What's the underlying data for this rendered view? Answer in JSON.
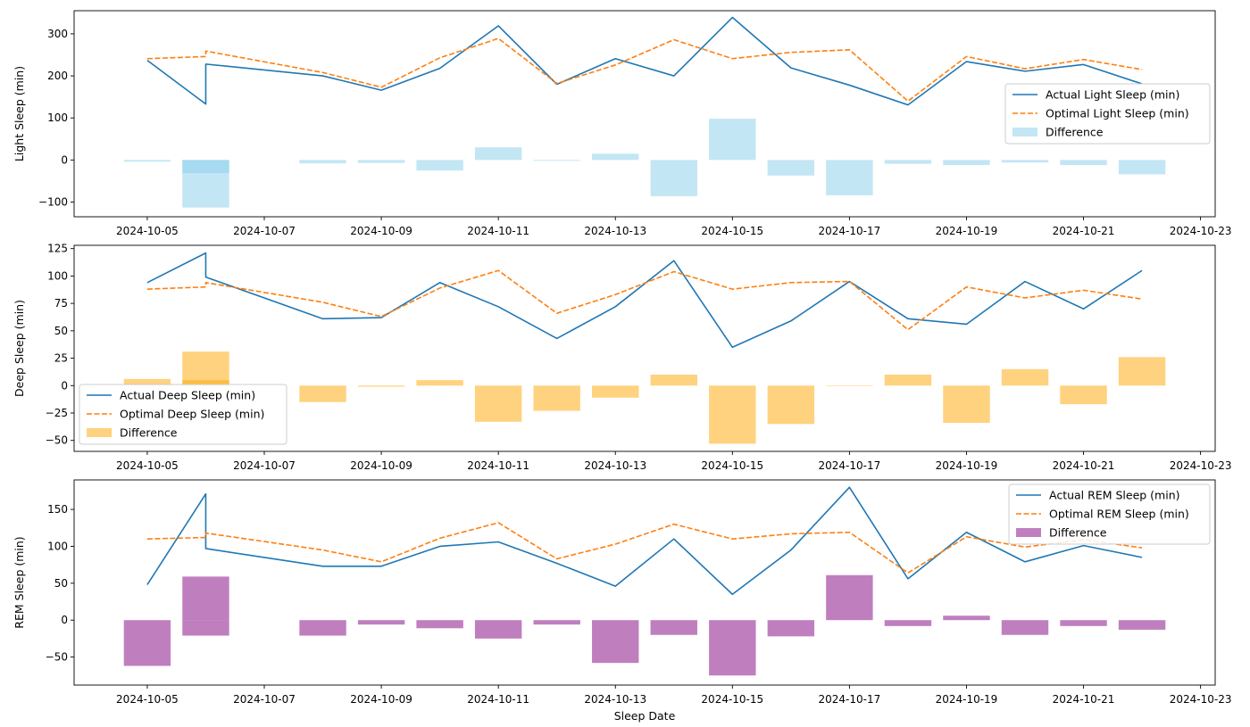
{
  "chart_data": [
    {
      "type": "line",
      "ylabel": "Light Sleep (min)",
      "xlabel": "",
      "ylim": [
        -135,
        355
      ],
      "yticks": [
        -100,
        0,
        100,
        200,
        300
      ],
      "xlim": [
        "2024-10-03T18:00",
        "2024-10-23T06:00"
      ],
      "xticks": [
        "2024-10-05",
        "2024-10-07",
        "2024-10-09",
        "2024-10-11",
        "2024-10-13",
        "2024-10-15",
        "2024-10-17",
        "2024-10-19",
        "2024-10-21",
        "2024-10-23"
      ],
      "series": [
        {
          "name": "Actual Light Sleep (min)",
          "kind": "line",
          "style": "solid",
          "color": "#1f77b4",
          "x": [
            "2024-10-05",
            "2024-10-06",
            "2024-10-06",
            "2024-10-08",
            "2024-10-09",
            "2024-10-10",
            "2024-10-11",
            "2024-10-12",
            "2024-10-13",
            "2024-10-14",
            "2024-10-15",
            "2024-10-16",
            "2024-10-17",
            "2024-10-18",
            "2024-10-19",
            "2024-10-20",
            "2024-10-21",
            "2024-10-22"
          ],
          "y": [
            237,
            133,
            228,
            200,
            166,
            218,
            319,
            180,
            241,
            200,
            339,
            219,
            178,
            131,
            234,
            211,
            227,
            181
          ]
        },
        {
          "name": "Optimal Light Sleep (min)",
          "kind": "line",
          "style": "dashed",
          "color": "#ff7f0e",
          "x": [
            "2024-10-05",
            "2024-10-06",
            "2024-10-06",
            "2024-10-08",
            "2024-10-09",
            "2024-10-10",
            "2024-10-11",
            "2024-10-12",
            "2024-10-13",
            "2024-10-14",
            "2024-10-15",
            "2024-10-16",
            "2024-10-17",
            "2024-10-18",
            "2024-10-19",
            "2024-10-20",
            "2024-10-21",
            "2024-10-22"
          ],
          "y": [
            241,
            246,
            259,
            208,
            173,
            243,
            289,
            182,
            226,
            286,
            241,
            256,
            262,
            140,
            246,
            217,
            239,
            215
          ]
        },
        {
          "name": "Difference",
          "kind": "bar",
          "color": "#87ceeb",
          "opacity": 0.5,
          "x": [
            "2024-10-05",
            "2024-10-06",
            "2024-10-06",
            "2024-10-08",
            "2024-10-09",
            "2024-10-10",
            "2024-10-11",
            "2024-10-12",
            "2024-10-13",
            "2024-10-14",
            "2024-10-15",
            "2024-10-16",
            "2024-10-17",
            "2024-10-18",
            "2024-10-19",
            "2024-10-20",
            "2024-10-21",
            "2024-10-22"
          ],
          "y": [
            -4,
            -113,
            -31,
            -8,
            -7,
            -25,
            30,
            -2,
            15,
            -86,
            98,
            -37,
            -84,
            -9,
            -12,
            -6,
            -12,
            -34
          ]
        }
      ],
      "legend": "right"
    },
    {
      "type": "line",
      "ylabel": "Deep Sleep (min)",
      "xlabel": "",
      "ylim": [
        -60,
        128
      ],
      "yticks": [
        -50,
        -25,
        0,
        25,
        50,
        75,
        100,
        125
      ],
      "xlim": [
        "2024-10-03T18:00",
        "2024-10-23T06:00"
      ],
      "xticks": [
        "2024-10-05",
        "2024-10-07",
        "2024-10-09",
        "2024-10-11",
        "2024-10-13",
        "2024-10-15",
        "2024-10-17",
        "2024-10-19",
        "2024-10-21",
        "2024-10-23"
      ],
      "series": [
        {
          "name": "Actual Deep Sleep (min)",
          "kind": "line",
          "style": "solid",
          "color": "#1f77b4",
          "x": [
            "2024-10-05",
            "2024-10-06",
            "2024-10-06",
            "2024-10-08",
            "2024-10-09",
            "2024-10-10",
            "2024-10-11",
            "2024-10-12",
            "2024-10-13",
            "2024-10-14",
            "2024-10-15",
            "2024-10-16",
            "2024-10-17",
            "2024-10-18",
            "2024-10-19",
            "2024-10-20",
            "2024-10-21",
            "2024-10-22"
          ],
          "y": [
            94,
            121,
            99,
            61,
            62,
            94,
            72,
            43,
            72,
            114,
            35,
            59,
            95,
            61,
            56,
            95,
            70,
            105
          ]
        },
        {
          "name": "Optimal Deep Sleep (min)",
          "kind": "line",
          "style": "dashed",
          "color": "#ff7f0e",
          "x": [
            "2024-10-05",
            "2024-10-06",
            "2024-10-06",
            "2024-10-08",
            "2024-10-09",
            "2024-10-10",
            "2024-10-11",
            "2024-10-12",
            "2024-10-13",
            "2024-10-14",
            "2024-10-15",
            "2024-10-16",
            "2024-10-17",
            "2024-10-18",
            "2024-10-19",
            "2024-10-20",
            "2024-10-21",
            "2024-10-22"
          ],
          "y": [
            88,
            90,
            94,
            76,
            63,
            89,
            105,
            66,
            83,
            104,
            88,
            94,
            95,
            51,
            90,
            80,
            87,
            79
          ]
        },
        {
          "name": "Difference",
          "kind": "bar",
          "color": "#ffa500",
          "opacity": 0.5,
          "x": [
            "2024-10-05",
            "2024-10-06",
            "2024-10-06",
            "2024-10-08",
            "2024-10-09",
            "2024-10-10",
            "2024-10-11",
            "2024-10-12",
            "2024-10-13",
            "2024-10-14",
            "2024-10-15",
            "2024-10-16",
            "2024-10-17",
            "2024-10-18",
            "2024-10-19",
            "2024-10-20",
            "2024-10-21",
            "2024-10-22"
          ],
          "y": [
            6,
            31,
            5,
            -15,
            -1,
            5,
            -33,
            -23,
            -11,
            10,
            -53,
            -35,
            0,
            10,
            -34,
            15,
            -17,
            26
          ]
        }
      ],
      "legend": "lower left"
    },
    {
      "type": "line",
      "ylabel": "REM Sleep (min)",
      "xlabel": "Sleep Date",
      "ylim": [
        -88,
        190
      ],
      "yticks": [
        -50,
        0,
        50,
        100,
        150
      ],
      "xlim": [
        "2024-10-03T18:00",
        "2024-10-23T06:00"
      ],
      "xticks": [
        "2024-10-05",
        "2024-10-07",
        "2024-10-09",
        "2024-10-11",
        "2024-10-13",
        "2024-10-15",
        "2024-10-17",
        "2024-10-19",
        "2024-10-21",
        "2024-10-23"
      ],
      "series": [
        {
          "name": "Actual REM Sleep (min)",
          "kind": "line",
          "style": "solid",
          "color": "#1f77b4",
          "x": [
            "2024-10-05",
            "2024-10-06",
            "2024-10-06",
            "2024-10-08",
            "2024-10-09",
            "2024-10-10",
            "2024-10-11",
            "2024-10-12",
            "2024-10-13",
            "2024-10-14",
            "2024-10-15",
            "2024-10-16",
            "2024-10-17",
            "2024-10-18",
            "2024-10-19",
            "2024-10-20",
            "2024-10-21",
            "2024-10-22"
          ],
          "y": [
            48,
            171,
            97,
            73,
            73,
            100,
            106,
            77,
            46,
            110,
            35,
            95,
            180,
            56,
            119,
            79,
            101,
            85
          ]
        },
        {
          "name": "Optimal REM Sleep (min)",
          "kind": "line",
          "style": "dashed",
          "color": "#ff7f0e",
          "x": [
            "2024-10-05",
            "2024-10-06",
            "2024-10-06",
            "2024-10-08",
            "2024-10-09",
            "2024-10-10",
            "2024-10-11",
            "2024-10-12",
            "2024-10-13",
            "2024-10-14",
            "2024-10-15",
            "2024-10-16",
            "2024-10-17",
            "2024-10-18",
            "2024-10-19",
            "2024-10-20",
            "2024-10-21",
            "2024-10-22"
          ],
          "y": [
            110,
            112,
            118,
            95,
            79,
            111,
            132,
            83,
            103,
            130,
            110,
            117,
            119,
            64,
            113,
            99,
            109,
            98
          ]
        },
        {
          "name": "Difference",
          "kind": "bar",
          "color": "#800080",
          "opacity": 0.5,
          "x": [
            "2024-10-05",
            "2024-10-06",
            "2024-10-06",
            "2024-10-08",
            "2024-10-09",
            "2024-10-10",
            "2024-10-11",
            "2024-10-12",
            "2024-10-13",
            "2024-10-14",
            "2024-10-15",
            "2024-10-16",
            "2024-10-17",
            "2024-10-18",
            "2024-10-19",
            "2024-10-20",
            "2024-10-21",
            "2024-10-22"
          ],
          "y": [
            -62,
            59,
            -21,
            -21,
            -6,
            -11,
            -25,
            -6,
            -58,
            -20,
            -75,
            -22,
            61,
            -8,
            6,
            -20,
            -8,
            -13
          ]
        }
      ],
      "legend": "upper right"
    }
  ]
}
